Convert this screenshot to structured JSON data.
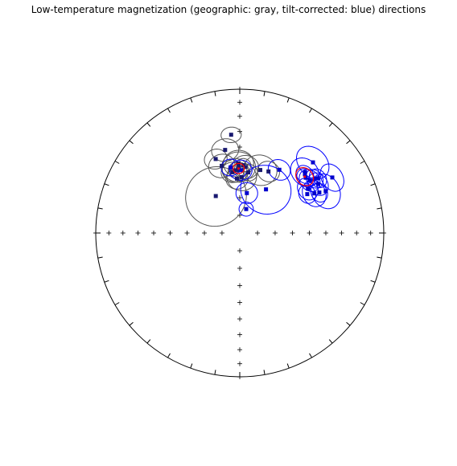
{
  "chart_data": {
    "type": "scatter",
    "projection": "equal-area stereonet",
    "title": "Low-temperature magnetization (geographic: gray, tilt-corrected: blue) directions",
    "colors": {
      "geographic": "#555555",
      "tilt_corrected": "#0000ff",
      "site_means": "#ff0000",
      "square_marker_geographic": "#191970",
      "square_marker_tilt_corrected": "#0000cd",
      "net": "#000000"
    },
    "series": [
      {
        "points": [
          {
            "dec": 355,
            "inc": 32,
            "a95": 5
          },
          {
            "dec": 359,
            "inc": 52,
            "a95": 9
          },
          {
            "dec": 359,
            "inc": 50,
            "a95": 8
          },
          {
            "dec": 5,
            "inc": 52,
            "a95": 7
          },
          {
            "dec": 353,
            "inc": 55,
            "a95": 6
          },
          {
            "dec": 345,
            "inc": 50,
            "a95": 7
          },
          {
            "dec": 342,
            "inc": 45,
            "a95": 6
          },
          {
            "dec": 2,
            "inc": 58,
            "a95": 8
          },
          {
            "dec": 357,
            "inc": 59,
            "a95": 6
          },
          {
            "dec": 356,
            "inc": 54,
            "a95": 7
          },
          {
            "dec": 3,
            "inc": 51,
            "a95": 4
          },
          {
            "dec": 8,
            "inc": 55,
            "a95": 5
          },
          {
            "dec": 25,
            "inc": 51,
            "a95": 6
          },
          {
            "dec": 18,
            "inc": 52,
            "a95": 9
          },
          {
            "dec": 327,
            "inc": 65,
            "a95": 17
          },
          {
            "dec": 350,
            "inc": 41,
            "a95": 7
          },
          {
            "dec": 358,
            "inc": 54,
            "a95": 5
          }
        ]
      },
      {
        "points": [
          {
            "dec": 59,
            "inc": 26,
            "a95": 7
          },
          {
            "dec": 46,
            "inc": 30,
            "a95": 9
          },
          {
            "dec": 62,
            "inc": 41,
            "a95": 7
          },
          {
            "dec": 64,
            "inc": 34,
            "a95": 9
          },
          {
            "dec": 60,
            "inc": 45,
            "a95": 5
          },
          {
            "dec": 57,
            "inc": 43,
            "a95": 6
          },
          {
            "dec": 55,
            "inc": 34,
            "a95": 5
          },
          {
            "dec": 47,
            "inc": 38,
            "a95": 8
          },
          {
            "dec": 32,
            "inc": 47,
            "a95": 6
          },
          {
            "dec": 53,
            "inc": 39,
            "a95": 6
          },
          {
            "dec": 58,
            "inc": 36,
            "a95": 6
          },
          {
            "dec": 54,
            "inc": 36,
            "a95": 5
          },
          {
            "dec": 50,
            "inc": 40,
            "a95": 5
          },
          {
            "dec": 48,
            "inc": 39,
            "a95": 5
          },
          {
            "dec": 31,
            "inc": 61,
            "a95": 14
          },
          {
            "dec": 10,
            "inc": 67,
            "a95": 6
          },
          {
            "dec": 15,
            "inc": 76,
            "a95": 4
          },
          {
            "dec": 1,
            "inc": 54,
            "a95": 6
          },
          {
            "dec": 352,
            "inc": 52,
            "a95": 5
          },
          {
            "dec": 63,
            "inc": 38,
            "a95": 5
          }
        ]
      }
    ],
    "site_means": [
      {
        "dec": 359,
        "inc": 53,
        "a95": 3
      },
      {
        "dec": 49,
        "inc": 40,
        "a95": 5
      }
    ]
  }
}
